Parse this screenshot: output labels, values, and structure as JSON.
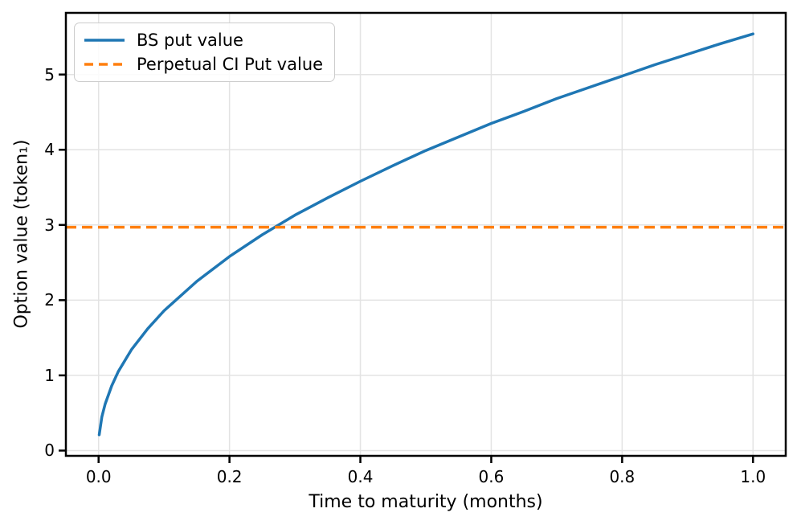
{
  "colors": {
    "background": "#ffffff",
    "blue": "#1f77b4",
    "orange": "#ff7f0e",
    "grid": "#e3e3e3",
    "spine": "#000000",
    "text": "#000000",
    "legend_border": "#cccccc"
  },
  "chart_data": {
    "type": "line",
    "title": "",
    "xlabel": "Time to maturity (months)",
    "ylabel": "Option value (token₁)",
    "xlim": [
      -0.05,
      1.05
    ],
    "ylim": [
      -0.07,
      5.82
    ],
    "grid": true,
    "legend_position": "upper-left",
    "xticks": [
      0.0,
      0.2,
      0.4,
      0.6,
      0.8,
      1.0
    ],
    "xtick_labels": [
      "0.0",
      "0.2",
      "0.4",
      "0.6",
      "0.8",
      "1.0"
    ],
    "yticks": [
      0,
      1,
      2,
      3,
      4,
      5
    ],
    "ytick_labels": [
      "0",
      "1",
      "2",
      "3",
      "4",
      "5"
    ],
    "series": [
      {
        "name": "BS put value",
        "color": "#1f77b4",
        "line_style": "solid",
        "x": [
          0.001,
          0.005,
          0.01,
          0.02,
          0.03,
          0.05,
          0.075,
          0.1,
          0.15,
          0.2,
          0.25,
          0.3,
          0.35,
          0.4,
          0.45,
          0.5,
          0.55,
          0.6,
          0.65,
          0.7,
          0.75,
          0.8,
          0.85,
          0.9,
          0.95,
          1.0
        ],
        "y": [
          0.21,
          0.45,
          0.62,
          0.86,
          1.05,
          1.34,
          1.62,
          1.86,
          2.25,
          2.58,
          2.87,
          3.13,
          3.36,
          3.58,
          3.79,
          3.99,
          4.17,
          4.35,
          4.51,
          4.68,
          4.83,
          4.98,
          5.13,
          5.27,
          5.41,
          5.54
        ]
      },
      {
        "name": "Perpetual CI Put value",
        "color": "#ff7f0e",
        "line_style": "dashed",
        "type": "hline",
        "value": 2.97
      }
    ]
  }
}
